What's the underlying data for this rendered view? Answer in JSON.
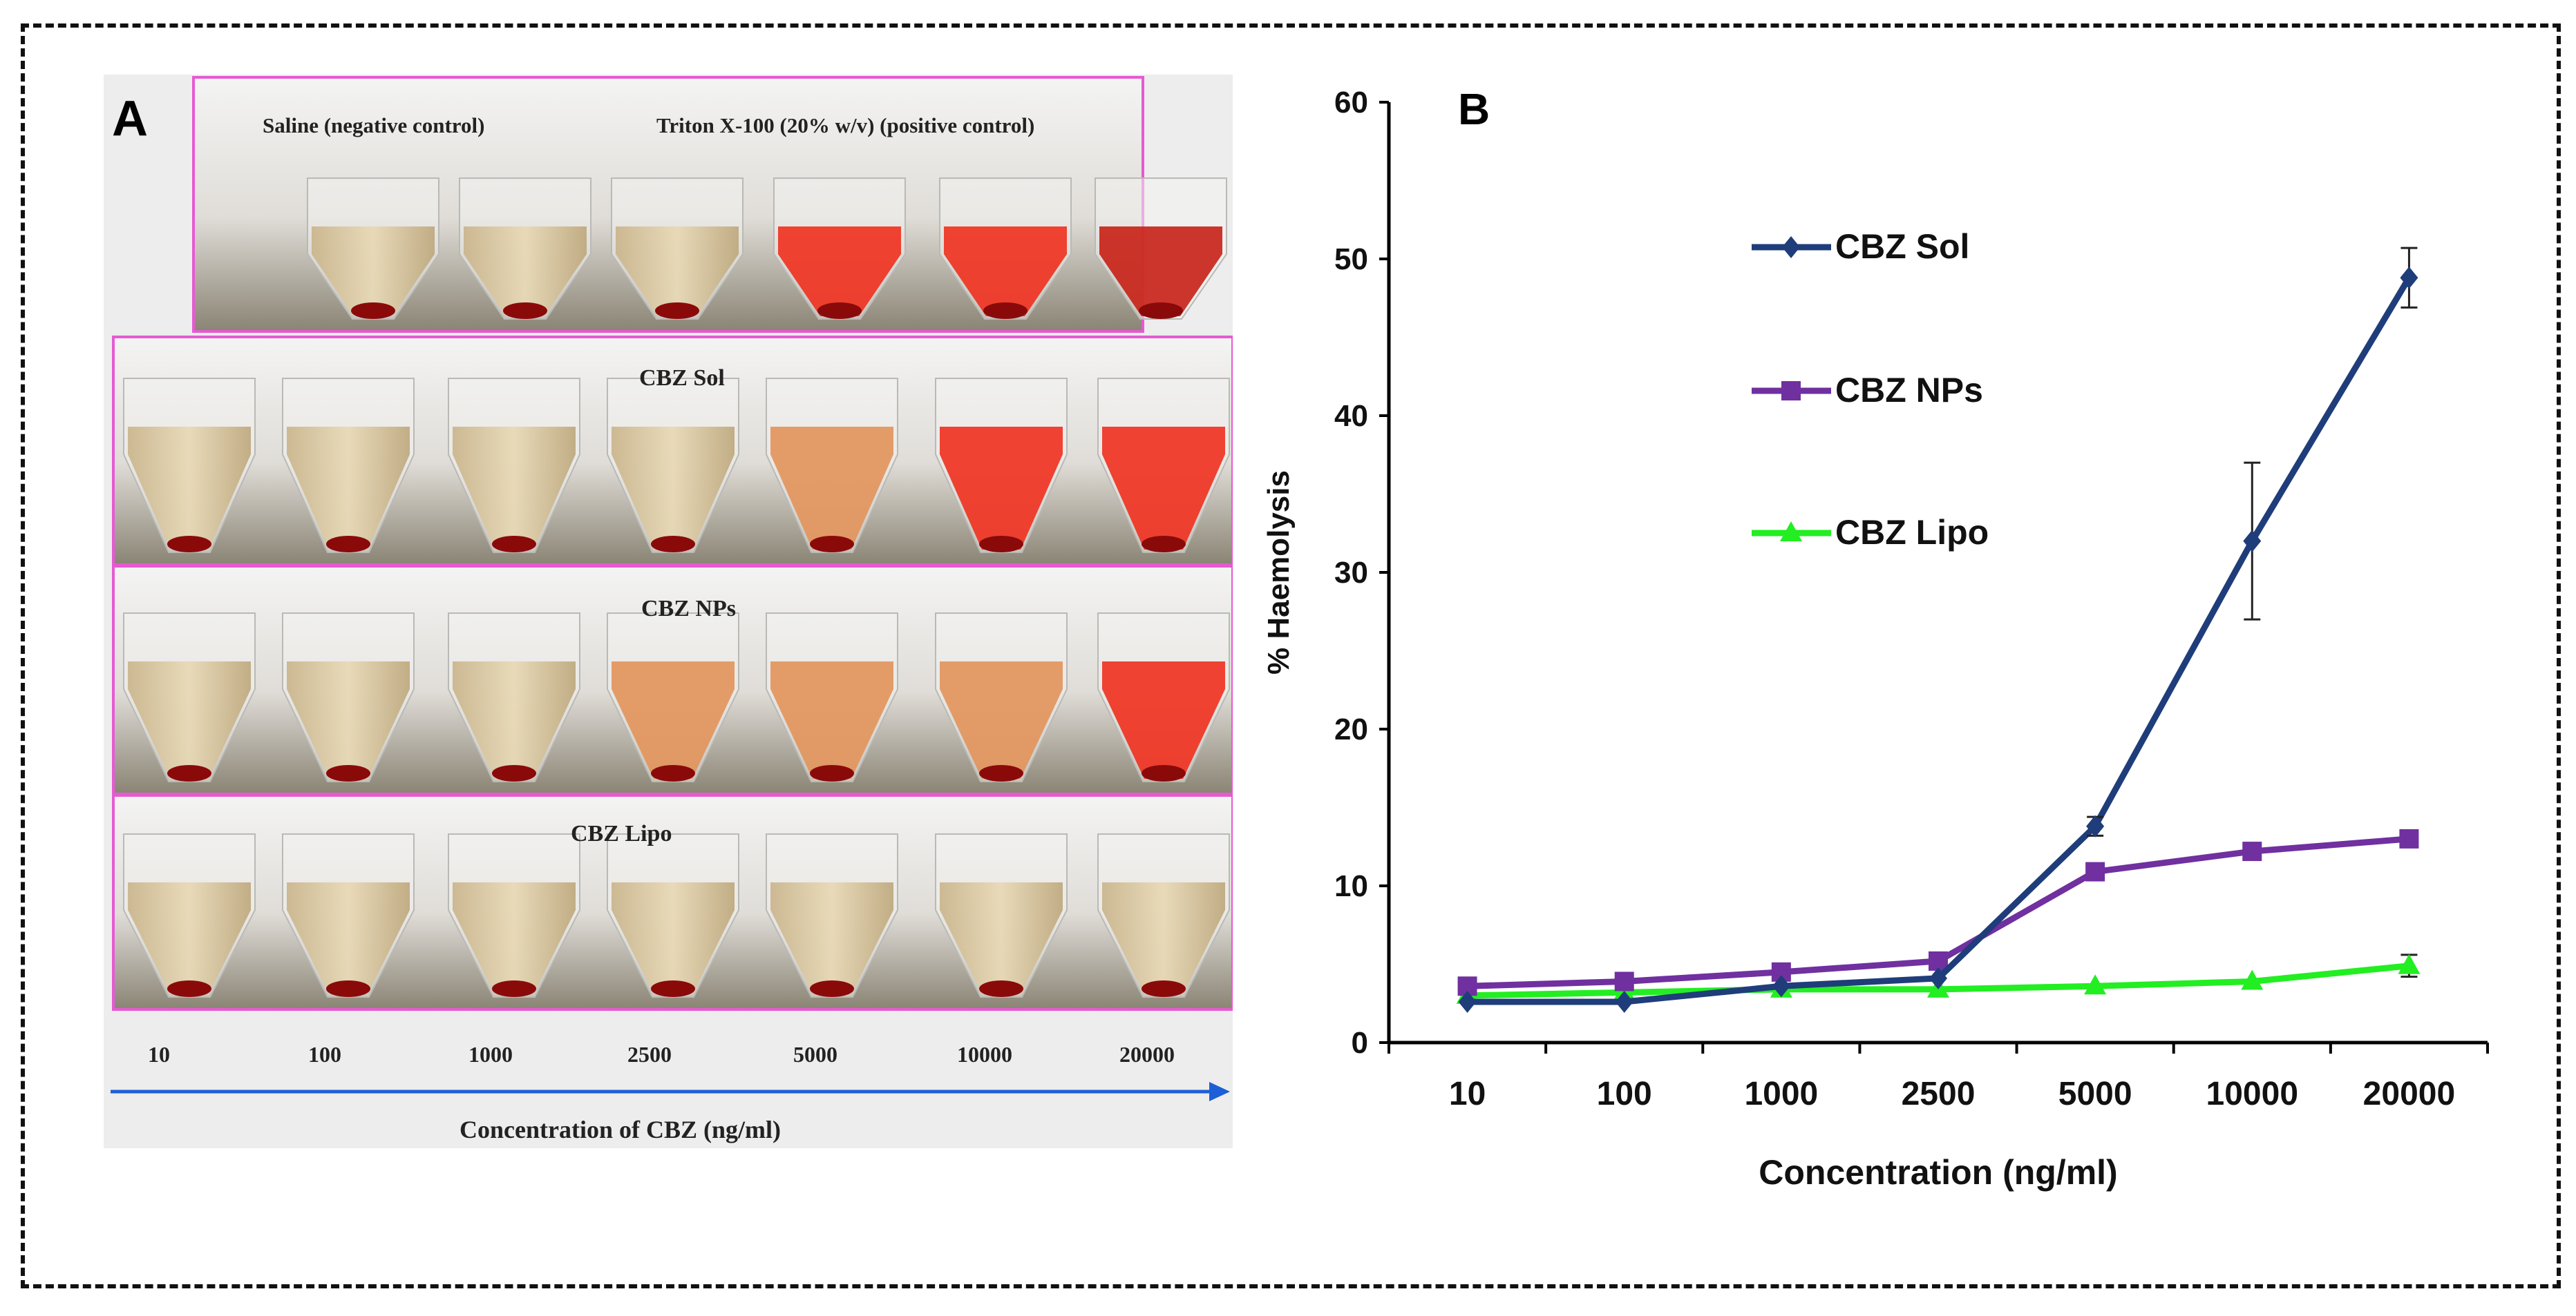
{
  "panel_a": {
    "label": "A",
    "row_titles": {
      "controls_negative": "Saline  (negative control)",
      "controls_positive": "Triton  X-100 (20% w/v)  (positive control)",
      "sol": "CBZ Sol",
      "nps": "CBZ NPs",
      "lipo": "CBZ Lipo"
    },
    "concentrations": [
      "10",
      "100",
      "1000",
      "2500",
      "5000",
      "10000",
      "20000"
    ],
    "axis_label": "Concentration  of  CBZ  (ng/ml)"
  },
  "chart_data": {
    "panel_label": "B",
    "type": "line",
    "title": "",
    "categories": [
      "10",
      "100",
      "1000",
      "2500",
      "5000",
      "10000",
      "20000"
    ],
    "xlabel": "Concentration (ng/ml)",
    "ylabel": "% Haemolysis",
    "ylim": [
      0,
      60
    ],
    "yticks": [
      0,
      10,
      20,
      30,
      40,
      50,
      60
    ],
    "legend_position": "upper-left-center",
    "series": [
      {
        "name": "CBZ Sol",
        "color": "#1f3d7a",
        "marker": "diamond",
        "values": [
          2.6,
          2.6,
          3.6,
          4.1,
          13.8,
          32.0,
          48.8
        ],
        "errors": [
          0.3,
          0.3,
          0.3,
          0.4,
          0.6,
          5.0,
          1.9
        ]
      },
      {
        "name": "CBZ NPs",
        "color": "#7030a0",
        "marker": "square",
        "values": [
          3.6,
          3.9,
          4.5,
          5.2,
          10.9,
          12.2,
          13.0
        ],
        "errors": [
          0,
          0,
          0,
          0,
          0,
          0,
          0
        ]
      },
      {
        "name": "CBZ Lipo",
        "color": "#22ee22",
        "marker": "triangle",
        "values": [
          3.0,
          3.2,
          3.4,
          3.4,
          3.6,
          3.9,
          4.9
        ],
        "errors": [
          0,
          0,
          0,
          0,
          0,
          0,
          0.7
        ]
      }
    ]
  }
}
